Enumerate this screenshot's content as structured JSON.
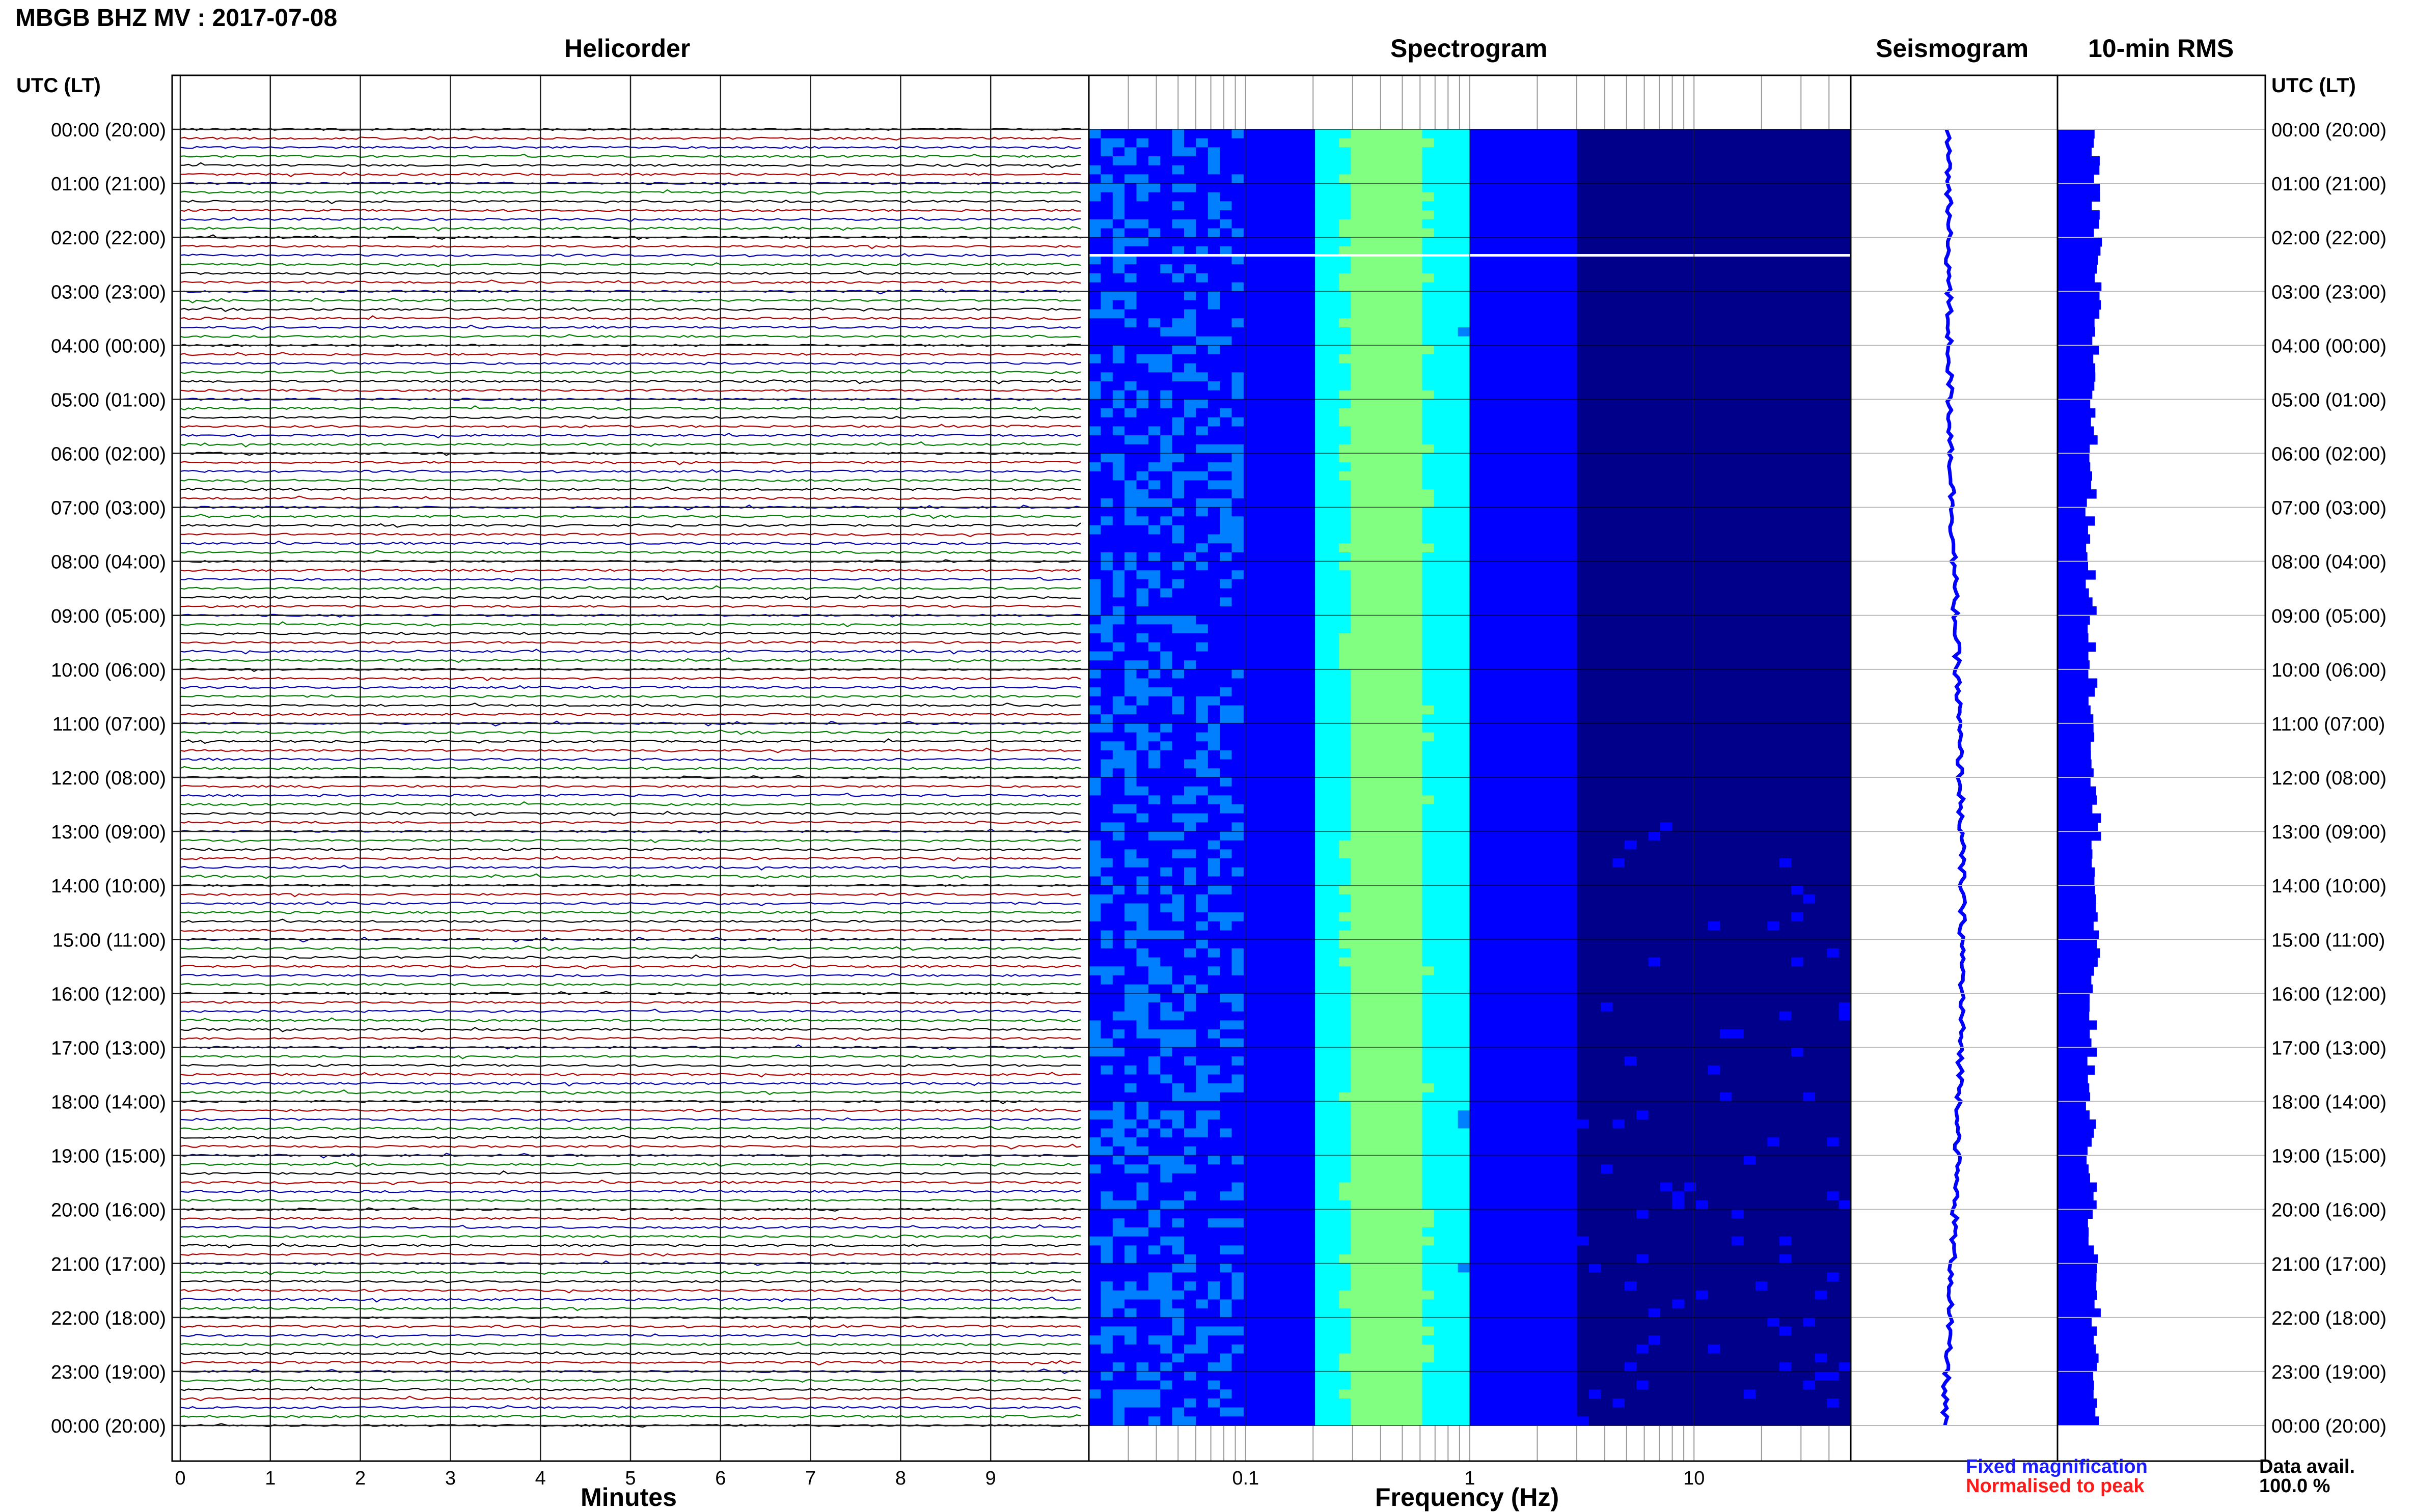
{
  "header": {
    "title": "MBGB BHZ MV : 2017-07-08",
    "panels": {
      "helicorder": "Helicorder",
      "spectrogram": "Spectrogram",
      "seismogram": "Seismogram",
      "rms": "10-min RMS"
    },
    "utc_label_left": "UTC (LT)",
    "utc_label_right": "UTC (LT)"
  },
  "footer": {
    "minutes_label": "Minutes",
    "frequency_label": "Frequency (Hz)",
    "legend_fixed": "Fixed magnification",
    "legend_normalised": "Normalised to peak",
    "data_avail_label": "Data avail.",
    "data_avail_value": "100.0 %"
  },
  "chart_data": [
    {
      "type": "line",
      "title": "Helicorder",
      "xlabel": "Minutes",
      "x_ticks": [
        "0",
        "1",
        "2",
        "3",
        "4",
        "5",
        "6",
        "7",
        "8",
        "9"
      ],
      "xlim": [
        0,
        10
      ],
      "y_ticks": [
        "00:00 (20:00)",
        "01:00 (21:00)",
        "02:00 (22:00)",
        "03:00 (23:00)",
        "04:00 (00:00)",
        "05:00 (01:00)",
        "06:00 (02:00)",
        "07:00 (03:00)",
        "08:00 (04:00)",
        "09:00 (05:00)",
        "10:00 (06:00)",
        "11:00 (07:00)",
        "12:00 (08:00)",
        "13:00 (09:00)",
        "14:00 (10:00)",
        "15:00 (11:00)",
        "16:00 (12:00)",
        "17:00 (13:00)",
        "18:00 (14:00)",
        "19:00 (15:00)",
        "20:00 (16:00)",
        "21:00 (17:00)",
        "22:00 (18:00)",
        "23:00 (19:00)",
        "00:00 (20:00)"
      ],
      "lines_per_hour": 6,
      "trace_colors": [
        "#000000",
        "#b00000",
        "#0000b0",
        "#008000"
      ],
      "grid": true
    },
    {
      "type": "heatmap",
      "title": "Spectrogram",
      "xlabel": "Frequency (Hz)",
      "x_scale": "log",
      "xlim": [
        0.02,
        50
      ],
      "x_ticks": [
        {
          "value": 0.1,
          "label": "0.1"
        },
        {
          "value": 1,
          "label": "1"
        },
        {
          "value": 10,
          "label": "10"
        }
      ],
      "peak_band_hz": [
        0.2,
        1.0
      ],
      "gap_utc": "02:20",
      "colormap": [
        "#00008b",
        "#0000ff",
        "#0080ff",
        "#00ffff",
        "#80ff80",
        "#ffff00"
      ]
    },
    {
      "type": "line",
      "title": "Seismogram",
      "color": "#0000ff"
    },
    {
      "type": "bar",
      "title": "10-min RMS",
      "color": "#0000ff"
    }
  ],
  "colors": {
    "blue": "#0000ff",
    "navy": "#00008b",
    "red": "#ff0000",
    "grid": "#555555"
  }
}
